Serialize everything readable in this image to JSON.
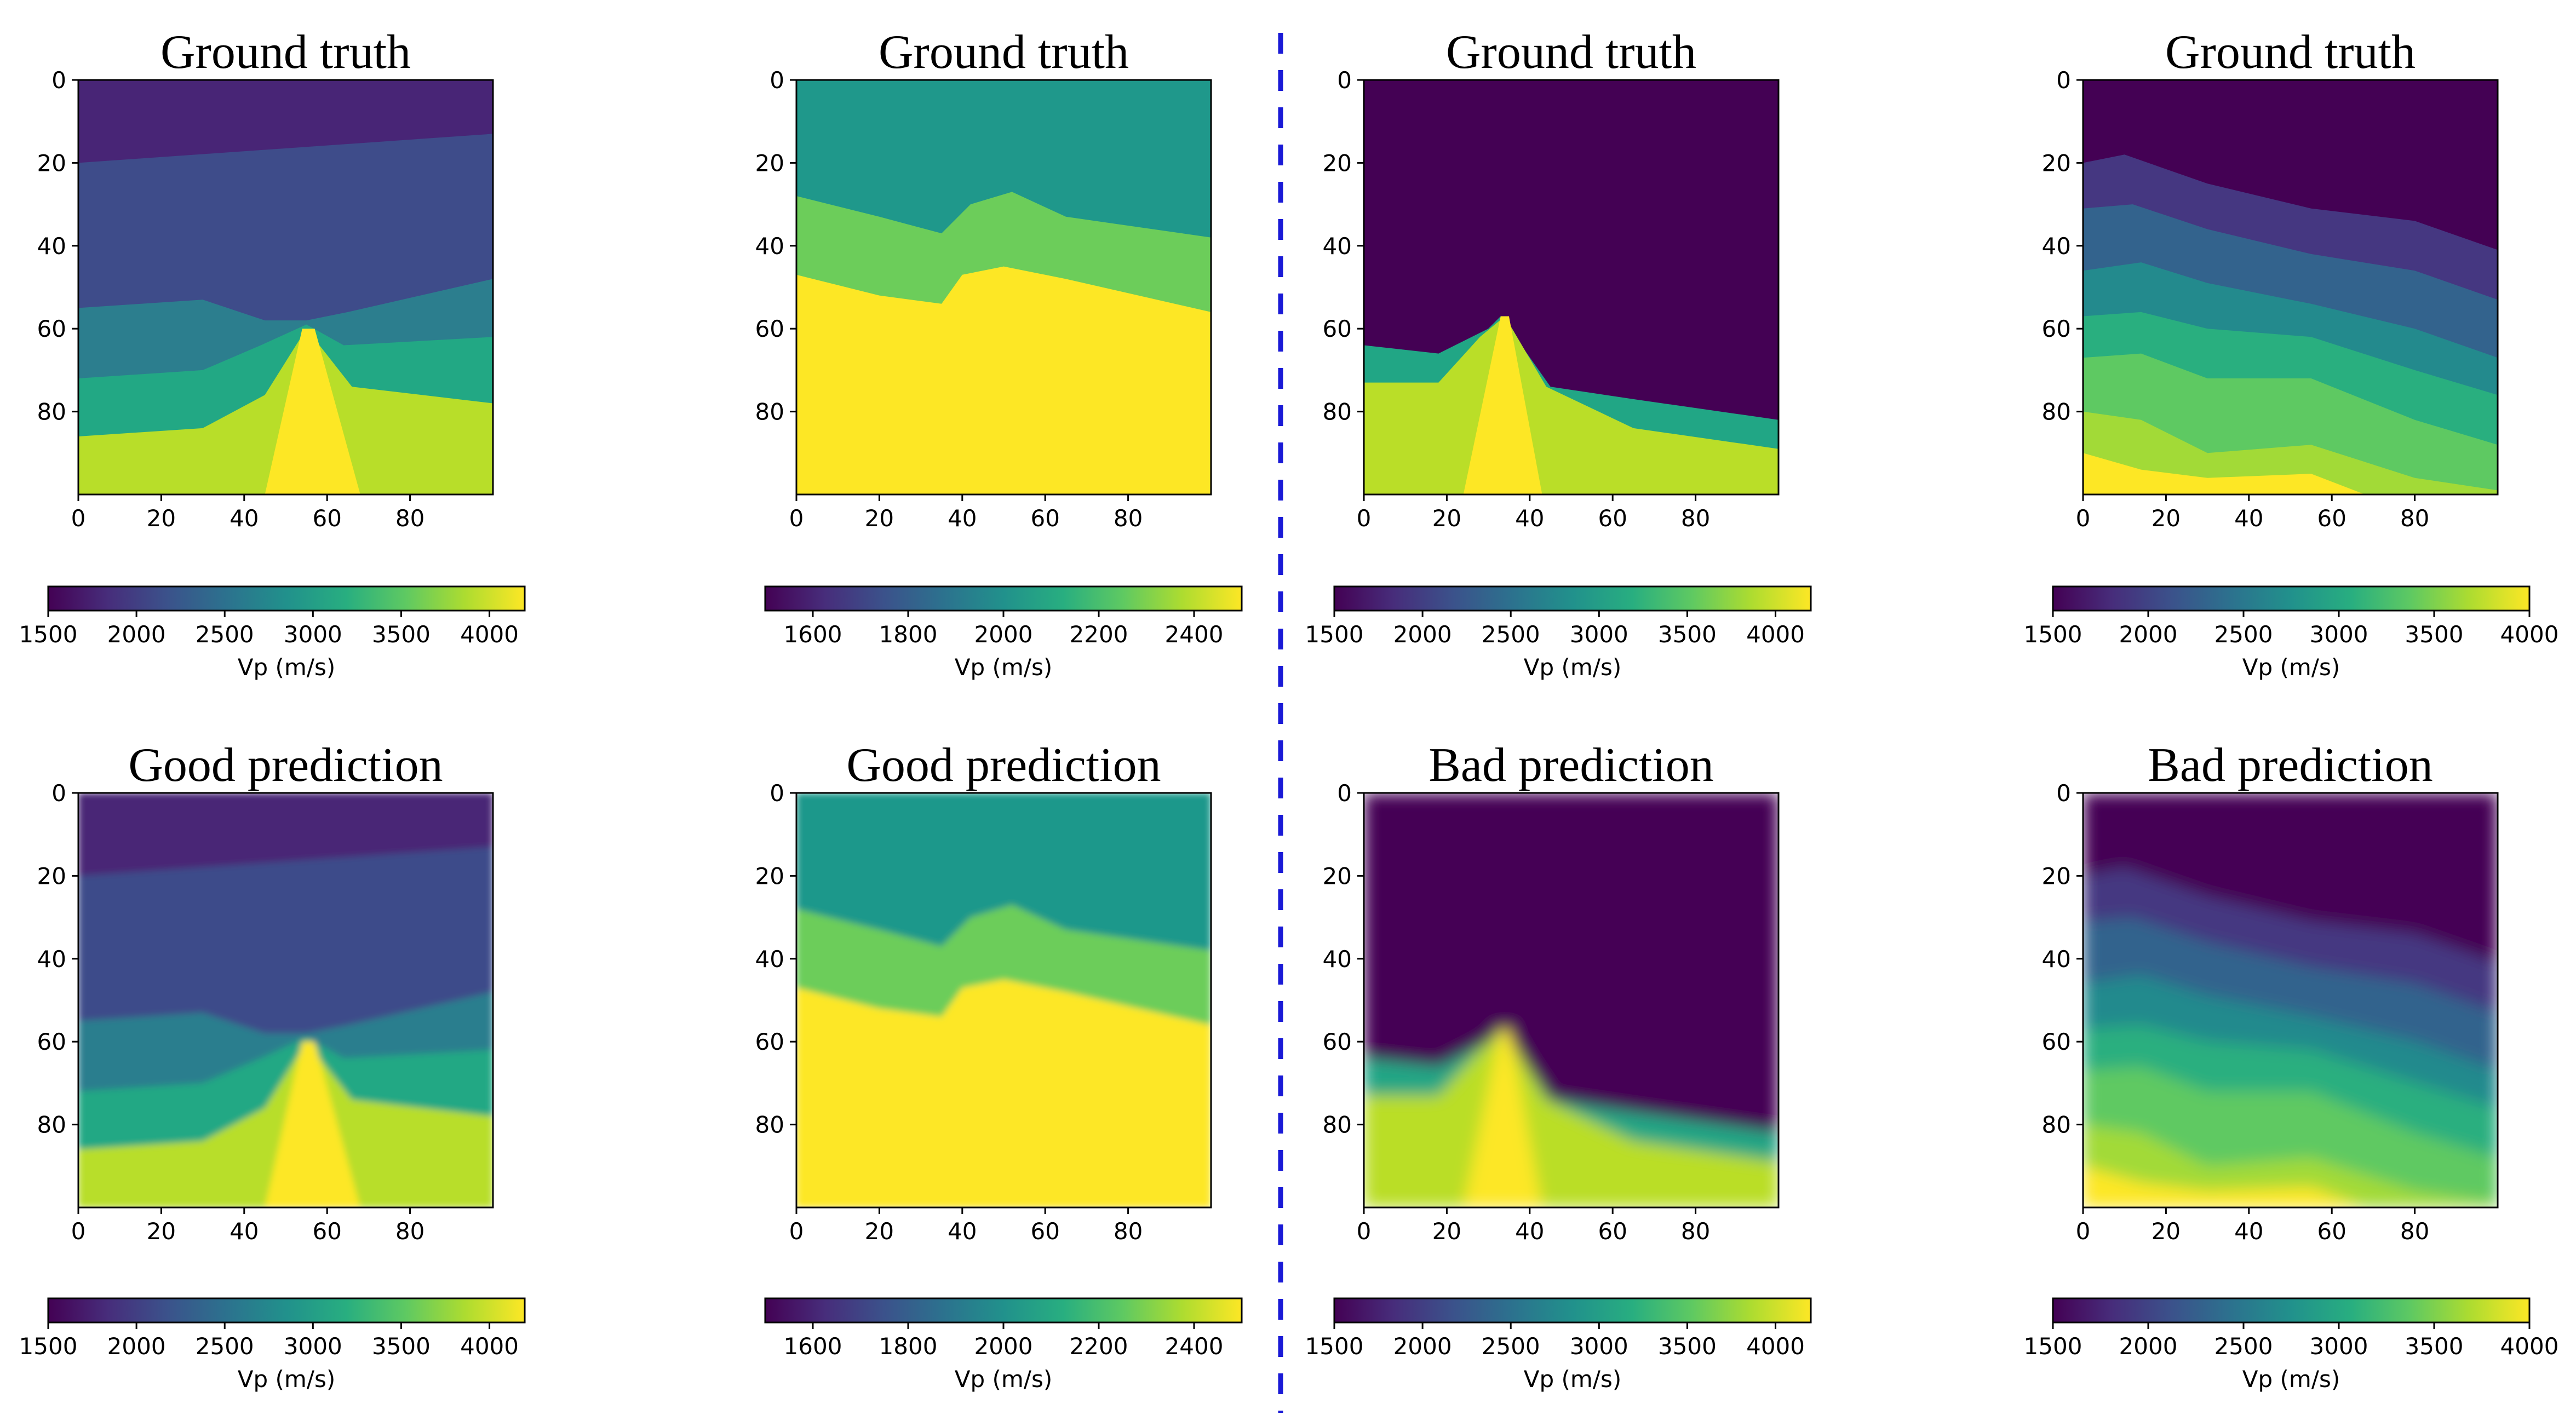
{
  "chart_data": [
    {
      "type": "heatmap",
      "title": "Ground truth",
      "group": "good",
      "row": 0,
      "col": 0,
      "xlim": [
        0,
        100
      ],
      "ylim": [
        100,
        0
      ],
      "xticks": [
        0,
        20,
        40,
        60,
        80
      ],
      "yticks": [
        0,
        20,
        40,
        60,
        80
      ],
      "colorbar": {
        "label": "Vp (m/s)",
        "min": 1500,
        "max": 4200,
        "ticks": [
          1500,
          2000,
          2500,
          3000,
          3500,
          4000
        ],
        "colormap": "viridis"
      }
    },
    {
      "type": "heatmap",
      "title": "Ground truth",
      "group": "good",
      "row": 0,
      "col": 1,
      "xlim": [
        0,
        100
      ],
      "ylim": [
        100,
        0
      ],
      "xticks": [
        0,
        20,
        40,
        60,
        80
      ],
      "yticks": [
        0,
        20,
        40,
        60,
        80
      ],
      "colorbar": {
        "label": "Vp (m/s)",
        "min": 1500,
        "max": 2500,
        "ticks": [
          1600,
          1800,
          2000,
          2200,
          2400
        ],
        "colormap": "viridis"
      }
    },
    {
      "type": "heatmap",
      "title": "Ground truth",
      "group": "bad",
      "row": 0,
      "col": 2,
      "xlim": [
        0,
        100
      ],
      "ylim": [
        100,
        0
      ],
      "xticks": [
        0,
        20,
        40,
        60,
        80
      ],
      "yticks": [
        0,
        20,
        40,
        60,
        80
      ],
      "colorbar": {
        "label": "Vp (m/s)",
        "min": 1500,
        "max": 4200,
        "ticks": [
          1500,
          2000,
          2500,
          3000,
          3500,
          4000
        ],
        "colormap": "viridis"
      }
    },
    {
      "type": "heatmap",
      "title": "Ground truth",
      "group": "bad",
      "row": 0,
      "col": 3,
      "xlim": [
        0,
        100
      ],
      "ylim": [
        100,
        0
      ],
      "xticks": [
        0,
        20,
        40,
        60,
        80
      ],
      "yticks": [
        0,
        20,
        40,
        60,
        80
      ],
      "colorbar": {
        "label": "Vp (m/s)",
        "min": 1500,
        "max": 4000,
        "ticks": [
          1500,
          2000,
          2500,
          3000,
          3500,
          4000
        ],
        "colormap": "viridis"
      }
    },
    {
      "type": "heatmap",
      "title": "Good prediction",
      "group": "good",
      "row": 1,
      "col": 0,
      "xlim": [
        0,
        100
      ],
      "ylim": [
        100,
        0
      ],
      "xticks": [
        0,
        20,
        40,
        60,
        80
      ],
      "yticks": [
        0,
        20,
        40,
        60,
        80
      ],
      "colorbar": {
        "label": "Vp (m/s)",
        "min": 1500,
        "max": 4200,
        "ticks": [
          1500,
          2000,
          2500,
          3000,
          3500,
          4000
        ],
        "colormap": "viridis"
      }
    },
    {
      "type": "heatmap",
      "title": "Good prediction",
      "group": "good",
      "row": 1,
      "col": 1,
      "xlim": [
        0,
        100
      ],
      "ylim": [
        100,
        0
      ],
      "xticks": [
        0,
        20,
        40,
        60,
        80
      ],
      "yticks": [
        0,
        20,
        40,
        60,
        80
      ],
      "colorbar": {
        "label": "Vp (m/s)",
        "min": 1500,
        "max": 2500,
        "ticks": [
          1600,
          1800,
          2000,
          2200,
          2400
        ],
        "colormap": "viridis"
      }
    },
    {
      "type": "heatmap",
      "title": "Bad prediction",
      "group": "bad",
      "row": 1,
      "col": 2,
      "xlim": [
        0,
        100
      ],
      "ylim": [
        100,
        0
      ],
      "xticks": [
        0,
        20,
        40,
        60,
        80
      ],
      "yticks": [
        0,
        20,
        40,
        60,
        80
      ],
      "colorbar": {
        "label": "Vp (m/s)",
        "min": 1500,
        "max": 4200,
        "ticks": [
          1500,
          2000,
          2500,
          3000,
          3500,
          4000
        ],
        "colormap": "viridis"
      }
    },
    {
      "type": "heatmap",
      "title": "Bad prediction",
      "group": "bad",
      "row": 1,
      "col": 3,
      "xlim": [
        0,
        100
      ],
      "ylim": [
        100,
        0
      ],
      "xticks": [
        0,
        20,
        40,
        60,
        80
      ],
      "yticks": [
        0,
        20,
        40,
        60,
        80
      ],
      "colorbar": {
        "label": "Vp (m/s)",
        "min": 1500,
        "max": 4000,
        "ticks": [
          1500,
          2000,
          2500,
          3000,
          3500,
          4000
        ],
        "colormap": "viridis"
      }
    }
  ],
  "colors": {
    "separator": "#1a1ad6",
    "background": "#ffffff",
    "axes": "#000000"
  }
}
